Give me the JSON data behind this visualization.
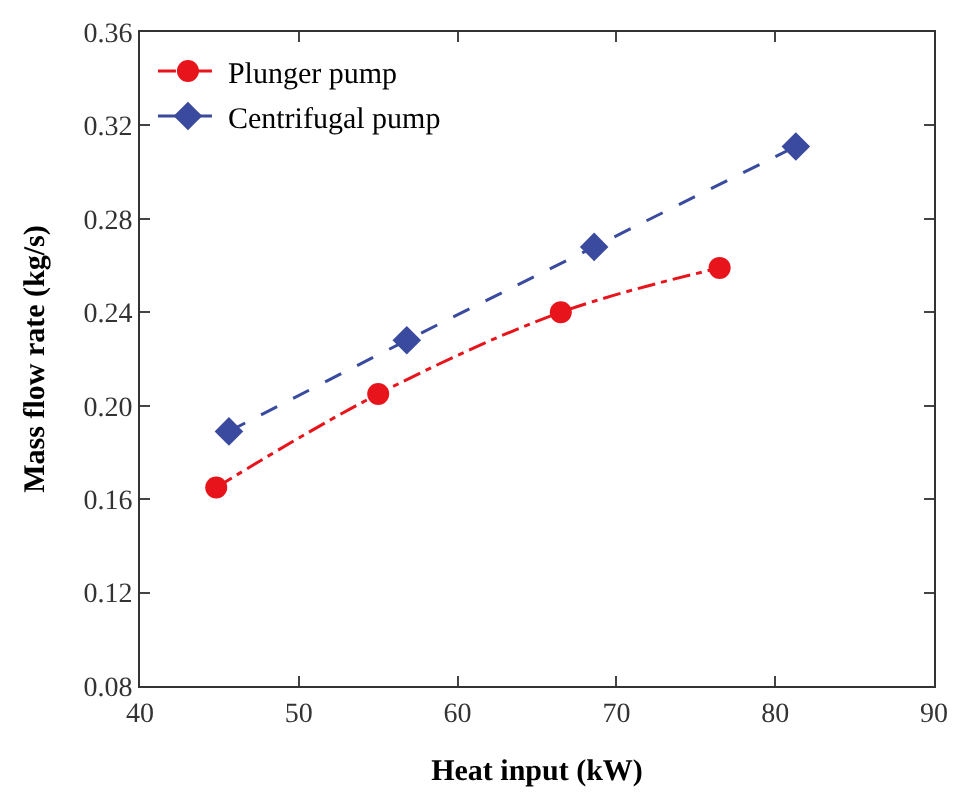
{
  "chart_data": {
    "type": "line",
    "xlabel": "Heat input (kW)",
    "ylabel": "Mass flow rate (kg/s)",
    "xlim": [
      40,
      90
    ],
    "xticks": [
      40,
      50,
      60,
      70,
      80,
      90
    ],
    "ylim": [
      0.08,
      0.36
    ],
    "yticks": [
      {
        "value": 0.08,
        "label": "0.08"
      },
      {
        "value": 0.12,
        "label": "0.12"
      },
      {
        "value": 0.16,
        "label": "0.16"
      },
      {
        "value": 0.2,
        "label": "0.20"
      },
      {
        "value": 0.24,
        "label": "0.24"
      },
      {
        "value": 0.28,
        "label": "0.28"
      },
      {
        "value": 0.32,
        "label": "0.32"
      },
      {
        "value": 0.36,
        "label": "0.36"
      }
    ],
    "legend": "top left",
    "series": [
      {
        "name": "Plunger pump",
        "color": "#e8141c",
        "marker": "circle",
        "line_style": "dashdot",
        "x": [
          44.8,
          55.0,
          66.5,
          76.5
        ],
        "values": [
          0.165,
          0.205,
          0.24,
          0.259
        ]
      },
      {
        "name": "Centrifugal pump",
        "color": "#3a4a9e",
        "marker": "diamond",
        "line_style": "dashed",
        "x": [
          45.6,
          56.8,
          68.6,
          81.3
        ],
        "values": [
          0.189,
          0.228,
          0.268,
          0.311
        ]
      }
    ]
  }
}
